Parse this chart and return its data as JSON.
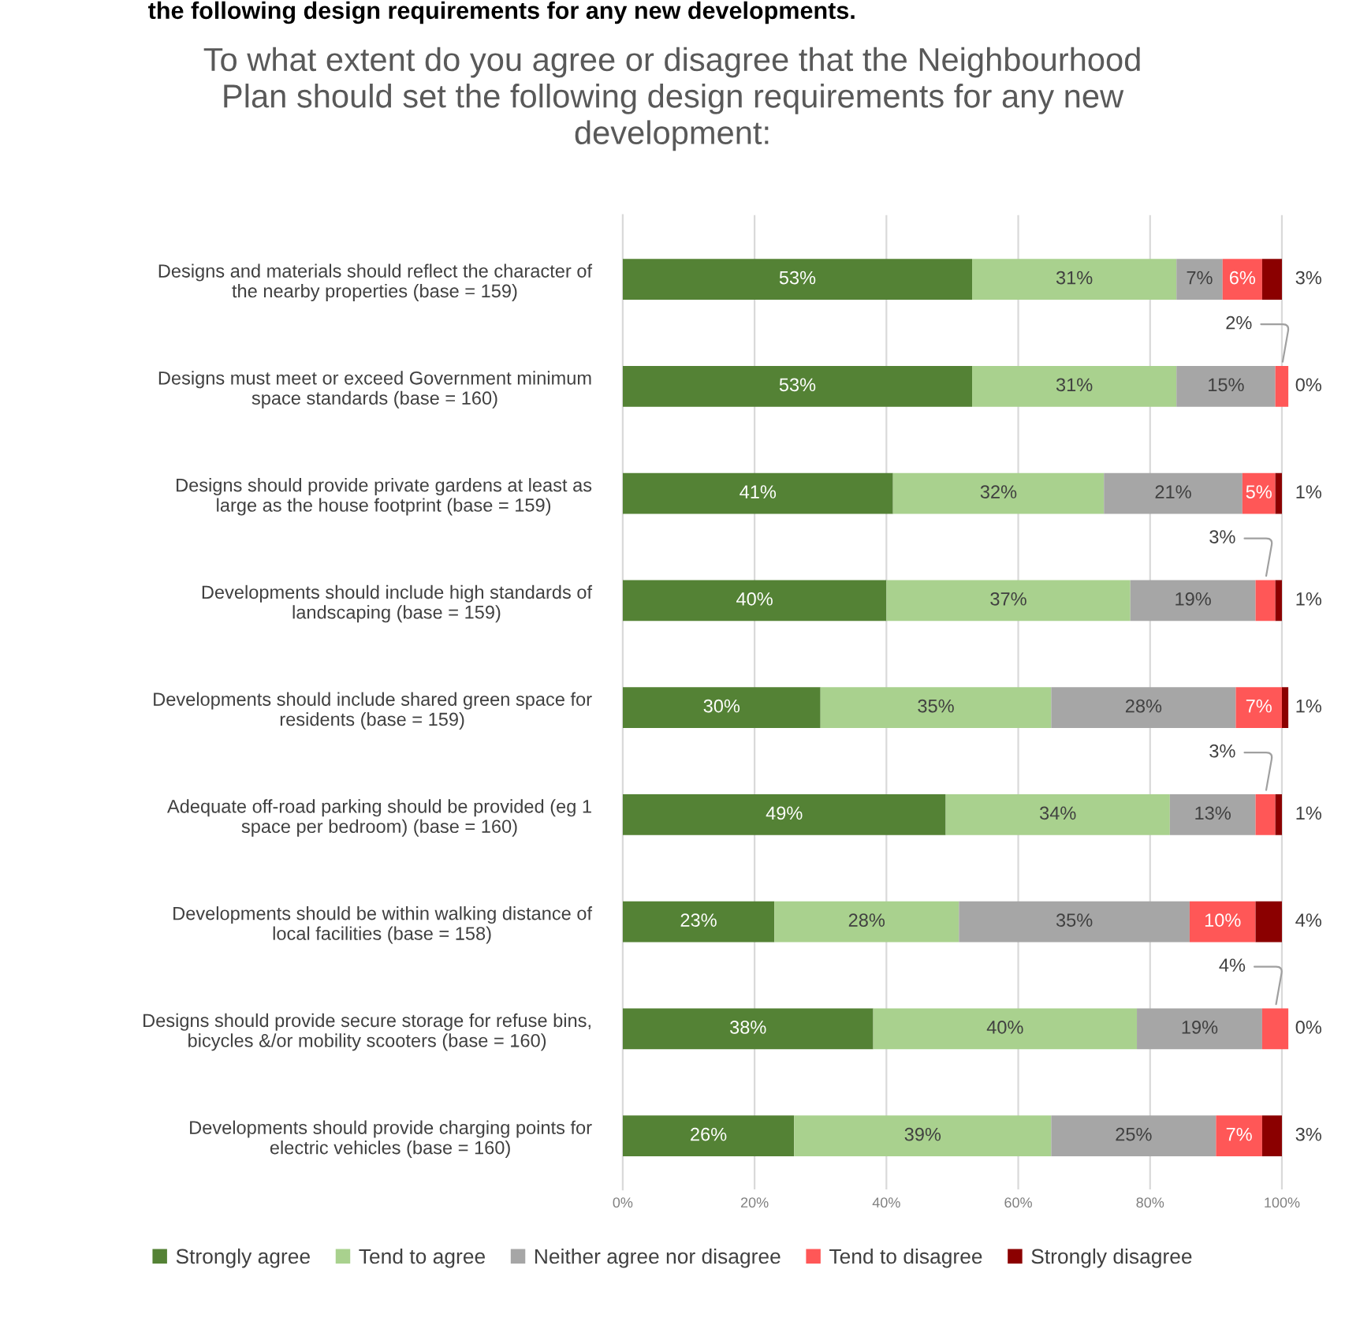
{
  "chart_data": {
    "type": "bar",
    "orientation": "horizontal",
    "stacked": true,
    "title": "To what extent do you agree or disagree that the Neighbourhood\nPlan should set the following design requirements for any new\ndevelopment:",
    "annotations": [
      "the following design requirements for any new developments."
    ],
    "categories": [
      "Designs and materials should reflect the character of\nthe nearby properties (base = 159)",
      "Designs must meet or exceed Government minimum\nspace standards (base = 160)",
      "Designs should provide private gardens at least as\nlarge as the house footprint (base = 159)",
      "Developments should include high standards of\nlandscaping (base = 159)",
      "Developments should include shared green space for\nresidents (base = 159)",
      "Adequate off-road parking should be provided (eg 1\nspace per bedroom) (base = 160)",
      "Developments should be within walking distance of\nlocal facilities (base = 158)",
      "Designs should provide secure storage for refuse bins,\nbicycles &/or mobility scooters (base = 160)",
      "Developments should provide charging points for\nelectric vehicles (base = 160)"
    ],
    "series": [
      {
        "name": "Strongly agree",
        "color": "#548235",
        "values": [
          53,
          53,
          41,
          40,
          30,
          49,
          23,
          38,
          26
        ],
        "value_labels": [
          "53%",
          "53%",
          "41%",
          "40%",
          "30%",
          "49%",
          "23%",
          "38%",
          "26%"
        ]
      },
      {
        "name": "Tend to agree",
        "color": "#a9d18e",
        "values": [
          31,
          31,
          32,
          37,
          35,
          34,
          28,
          40,
          39
        ],
        "value_labels": [
          "31%",
          "31%",
          "32%",
          "37%",
          "35%",
          "34%",
          "28%",
          "40%",
          "39%"
        ]
      },
      {
        "name": "Neither agree nor disagree",
        "color": "#a6a6a6",
        "values": [
          7,
          15,
          21,
          19,
          28,
          13,
          35,
          19,
          25
        ],
        "value_labels": [
          "7%",
          "15%",
          "21%",
          "19%",
          "28%",
          "13%",
          "35%",
          "19%",
          "25%"
        ]
      },
      {
        "name": "Tend to disagree",
        "color": "#ff5757",
        "values": [
          6,
          2,
          5,
          3,
          7,
          3,
          10,
          4,
          7
        ],
        "value_labels": [
          "6%",
          "2%",
          "5%",
          "3%",
          "7%",
          "3%",
          "10%",
          "4%",
          "7%"
        ]
      },
      {
        "name": "Strongly disagree",
        "color": "#8b0000",
        "values": [
          3,
          0,
          1,
          1,
          1,
          1,
          4,
          0,
          3
        ],
        "value_labels": [
          "3%",
          "0%",
          "1%",
          "1%",
          "1%",
          "1%",
          "4%",
          "0%",
          "3%"
        ]
      }
    ],
    "xlim": [
      0,
      101
    ],
    "xticks": [
      {
        "value": 0,
        "label": "0%"
      },
      {
        "value": 20,
        "label": "20%"
      },
      {
        "value": 40,
        "label": "40%"
      },
      {
        "value": 60,
        "label": "60%"
      },
      {
        "value": 80,
        "label": "80%"
      },
      {
        "value": 100,
        "label": "100%"
      }
    ],
    "grid": "x",
    "legend": "bottom"
  }
}
